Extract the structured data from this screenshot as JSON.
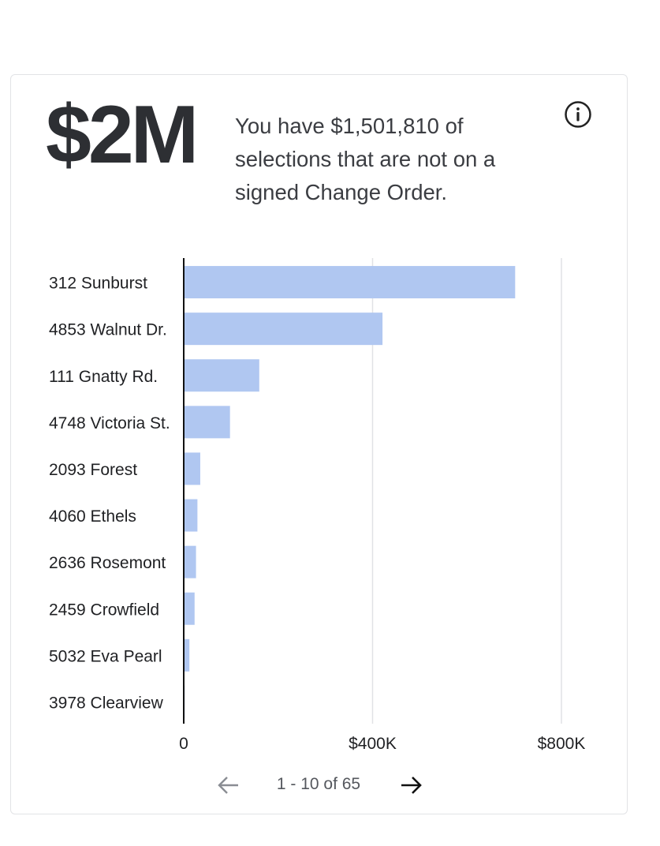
{
  "kpi": {
    "value": "$2M",
    "summary": "You have $1,501,810 of selections that are not on a signed Change Order."
  },
  "chart_data": {
    "type": "bar",
    "orientation": "horizontal",
    "categories": [
      "312 Sunburst",
      "4853 Walnut Dr.",
      "111 Gnatty Rd.",
      "4748 Victoria St.",
      "2093 Forest",
      "4060 Ethels",
      "2636 Rosemont",
      "2459 Crowfield",
      "5032 Eva Pearl",
      "3978 Clearview"
    ],
    "values": [
      702000,
      421000,
      160000,
      98000,
      35000,
      29000,
      26000,
      23000,
      12000,
      2000
    ],
    "xlim": [
      0,
      800000
    ],
    "x_ticks": [
      0,
      400000,
      800000
    ],
    "x_tick_labels": [
      "0",
      "$400K",
      "$800K"
    ],
    "bar_color": "#b0c7f1",
    "grid": true
  },
  "pagination": {
    "label": "1 - 10 of 65"
  },
  "icons": {
    "info": "info-icon",
    "prev": "arrow-left-icon",
    "next": "arrow-right-icon"
  }
}
